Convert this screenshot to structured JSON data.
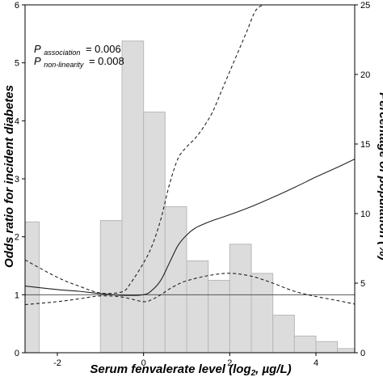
{
  "chart_data": {
    "type": "line",
    "title": "",
    "xlabel": "Serum fenvalerate level (log₂, µg/L)",
    "ylabel": "Odds ratio for incident diabetes",
    "y2label": "Percentage of population (%)",
    "xlim": [
      -2.75,
      4.9
    ],
    "ylim": [
      0,
      6
    ],
    "y2lim": [
      0,
      25
    ],
    "x_ticks": [
      -2,
      0,
      2,
      4
    ],
    "y_ticks": [
      0,
      1,
      2,
      3,
      4,
      5,
      6
    ],
    "y2_ticks": [
      0,
      5,
      10,
      15,
      20,
      25
    ],
    "grid": false,
    "annotations": {
      "p_association": {
        "label_main": "P",
        "label_sub": "association",
        "value": "= 0.006"
      },
      "p_nonlinearity": {
        "label_main": "P",
        "label_sub": "non-linearity",
        "value": "= 0.008"
      }
    },
    "reference_line": {
      "y": 1
    },
    "histogram": {
      "axis": "y2",
      "bins": [
        {
          "x0": -2.75,
          "x1": -2.42,
          "value": 9.4
        },
        {
          "x0": -1.0,
          "x1": -0.5,
          "value": 9.5
        },
        {
          "x0": -0.5,
          "x1": 0.0,
          "value": 22.4
        },
        {
          "x0": 0.0,
          "x1": 0.5,
          "value": 17.3
        },
        {
          "x0": 0.5,
          "x1": 1.0,
          "value": 10.5
        },
        {
          "x0": 1.0,
          "x1": 1.5,
          "value": 6.6
        },
        {
          "x0": 1.5,
          "x1": 2.0,
          "value": 5.2
        },
        {
          "x0": 2.0,
          "x1": 2.5,
          "value": 7.8
        },
        {
          "x0": 2.5,
          "x1": 3.0,
          "value": 5.7
        },
        {
          "x0": 3.0,
          "x1": 3.5,
          "value": 2.7
        },
        {
          "x0": 3.5,
          "x1": 4.0,
          "value": 1.2
        },
        {
          "x0": 4.0,
          "x1": 4.5,
          "value": 0.8
        },
        {
          "x0": 4.5,
          "x1": 4.9,
          "value": 0.3
        }
      ]
    },
    "series": [
      {
        "style": "solid",
        "x": [
          -2.75,
          -2.0,
          -1.5,
          -1.0,
          -0.5,
          0.0,
          0.2,
          0.4,
          0.6,
          0.8,
          1.0,
          1.2,
          1.4,
          1.6,
          2.0,
          2.5,
          3.0,
          3.5,
          4.0,
          4.5,
          4.9
        ],
        "values": [
          1.15,
          1.09,
          1.06,
          1.02,
          0.99,
          1.0,
          1.08,
          1.25,
          1.55,
          1.85,
          2.03,
          2.15,
          2.22,
          2.28,
          2.38,
          2.52,
          2.68,
          2.85,
          3.03,
          3.2,
          3.34
        ]
      },
      {
        "style": "dashed",
        "x": [
          -2.75,
          -2.0,
          -1.5,
          -1.0,
          -0.5,
          -0.3,
          0.0,
          0.2,
          0.4,
          0.6,
          0.8,
          1.0,
          1.2,
          1.4,
          1.6,
          1.8,
          2.0,
          2.2,
          2.4,
          2.6,
          2.8,
          3.0
        ],
        "values": [
          1.6,
          1.3,
          1.15,
          1.03,
          1.05,
          1.2,
          1.55,
          1.85,
          2.3,
          2.9,
          3.35,
          3.55,
          3.7,
          3.9,
          4.15,
          4.5,
          4.85,
          5.2,
          5.55,
          5.9,
          6.0,
          6.0
        ]
      },
      {
        "style": "dashed",
        "x": [
          -2.75,
          -2.0,
          -1.5,
          -1.0,
          -0.5,
          0.0,
          0.2,
          0.4,
          0.6,
          0.8,
          1.0,
          1.5,
          2.0,
          2.5,
          3.0,
          3.5,
          4.0,
          4.5,
          4.9
        ],
        "values": [
          0.83,
          0.88,
          0.93,
          0.98,
          0.96,
          0.88,
          0.92,
          1.0,
          1.1,
          1.18,
          1.24,
          1.33,
          1.37,
          1.32,
          1.2,
          1.06,
          0.97,
          0.9,
          0.84
        ]
      }
    ]
  }
}
